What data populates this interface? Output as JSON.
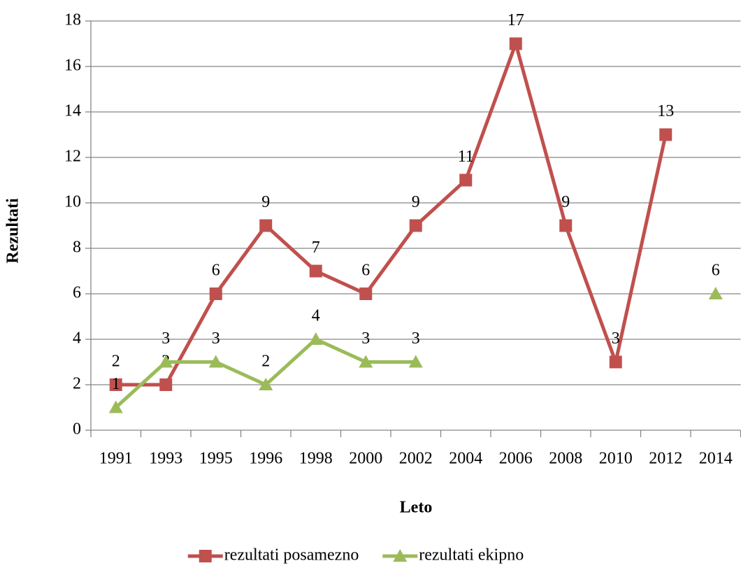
{
  "chart_data": {
    "type": "line",
    "xlabel": "Leto",
    "ylabel": "Rezultati",
    "categories": [
      "1991",
      "1993",
      "1995",
      "1996",
      "1998",
      "2000",
      "2002",
      "2004",
      "2006",
      "2008",
      "2010",
      "2012",
      "2014"
    ],
    "series": [
      {
        "name": "rezultati posamezno",
        "color": "#c0504d",
        "marker": "square",
        "values": [
          2,
          2,
          6,
          9,
          7,
          6,
          9,
          11,
          17,
          9,
          3,
          13,
          null
        ]
      },
      {
        "name": "rezultati ekipno",
        "color": "#9bbb59",
        "marker": "triangle",
        "values": [
          1,
          3,
          3,
          2,
          4,
          3,
          3,
          null,
          null,
          null,
          null,
          null,
          6
        ]
      }
    ],
    "ylim": [
      0,
      18
    ],
    "yticks": [
      0,
      2,
      4,
      6,
      8,
      10,
      12,
      14,
      16,
      18
    ],
    "grid": true,
    "legend": "bottom"
  }
}
